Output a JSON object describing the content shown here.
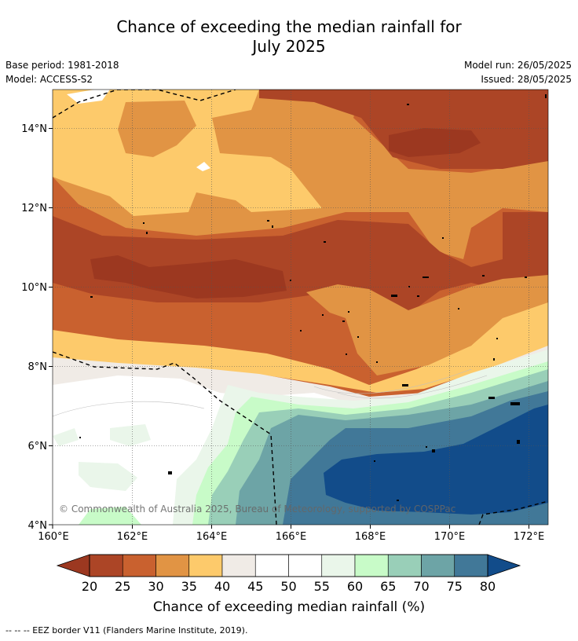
{
  "title": {
    "line1": "Chance of exceeding the median rainfall for",
    "line2": "July 2025"
  },
  "meta": {
    "base_period": "Base period: 1981-2018",
    "model": "Model: ACCESS-S2",
    "model_run": "Model run: 26/05/2025",
    "issued": "Issued: 28/05/2025"
  },
  "map": {
    "lon_range": [
      160,
      172.5
    ],
    "lat_range": [
      4,
      15
    ],
    "x_ticks": [
      "160°E",
      "162°E",
      "164°E",
      "166°E",
      "168°E",
      "170°E",
      "172°E"
    ],
    "y_ticks": [
      "4°N",
      "6°N",
      "8°N",
      "10°N",
      "12°N",
      "14°N"
    ],
    "copyright": "© Commonwealth of Australia 2025, Bureau of Meteorology, supported by COSPPac"
  },
  "colorbar": {
    "ticks": [
      "20",
      "25",
      "30",
      "35",
      "40",
      "45",
      "50",
      "55",
      "60",
      "65",
      "70",
      "75",
      "80"
    ],
    "low_color": "#9c3820",
    "high_color": "#124c8a",
    "colors": [
      "#ac4526",
      "#c9612f",
      "#e19444",
      "#fdca6b",
      "#f0ebe6",
      "#ffffff",
      "#ffffff",
      "#eaf6ea",
      "#c8fbc8",
      "#99cfb8",
      "#6da4a6",
      "#417898"
    ],
    "label": "Chance of exceeding median rainfall (%)"
  },
  "legend": {
    "eez": "--  --  -- EEZ border V11 (Flanders Marine Institute, 2019)."
  }
}
